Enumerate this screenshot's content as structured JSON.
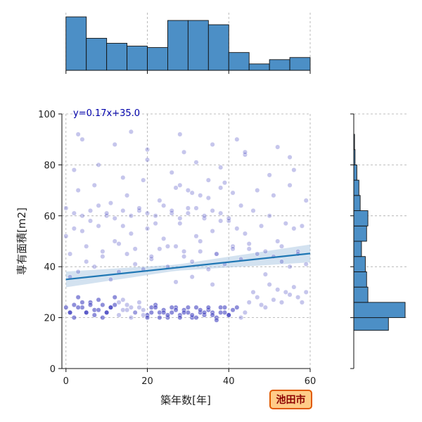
{
  "chart_data": {
    "type": "scatter",
    "xlabel": "築年数[年]",
    "ylabel": "専有面積[m2]",
    "xlim": [
      -1,
      60
    ],
    "ylim": [
      0,
      100
    ],
    "x_ticks": [
      0,
      20,
      40,
      60
    ],
    "y_ticks": [
      0,
      20,
      40,
      60,
      80,
      100
    ],
    "grid": true,
    "regression": {
      "label": "y=0.17x+35.0",
      "slope": 0.17,
      "intercept": 35.0,
      "color": "#1f77b4",
      "ci_color": "#aecbe3"
    },
    "point_color": "#3333bb",
    "badge": {
      "text": "池田市",
      "fill": "#ffcc88",
      "stroke": "#e05a00",
      "text_color": "#8b0000"
    },
    "x_hist": {
      "bin_edges": [
        0,
        5,
        10,
        15,
        20,
        25,
        30,
        35,
        40,
        45,
        50,
        55,
        60
      ],
      "counts": [
        75,
        45,
        38,
        34,
        32,
        70,
        70,
        64,
        25,
        9,
        15,
        18
      ],
      "color": "#4c8fc6"
    },
    "y_hist": {
      "bin_edges": [
        15,
        20,
        26,
        32,
        38,
        44,
        50,
        56,
        62,
        68,
        74,
        80,
        86,
        92
      ],
      "counts": [
        135,
        200,
        55,
        50,
        45,
        30,
        50,
        55,
        25,
        20,
        12,
        5,
        3
      ],
      "color": "#4c8fc6"
    },
    "scatter": {
      "x": [
        1,
        2,
        3,
        4,
        5,
        6,
        7,
        8,
        9,
        10,
        11,
        12,
        13,
        14,
        15,
        16,
        17,
        18,
        19,
        20,
        21,
        22,
        23,
        24,
        25,
        26,
        27,
        28,
        29,
        30,
        31,
        32,
        33,
        34,
        35,
        36,
        37,
        38,
        39,
        40,
        41,
        42,
        43,
        44,
        45,
        46,
        47,
        48,
        49,
        50,
        51,
        52,
        53,
        54,
        55,
        56,
        57,
        58,
        59,
        0,
        1,
        2,
        3,
        4,
        5,
        6,
        7,
        8,
        9,
        10,
        11,
        12,
        13,
        14,
        15,
        16,
        17,
        18,
        19,
        20,
        21,
        22,
        23,
        24,
        25,
        26,
        27,
        28,
        29,
        30,
        31,
        32,
        33,
        34,
        35,
        36,
        37,
        38,
        39,
        40,
        1,
        3,
        5,
        7,
        9,
        11,
        13,
        15,
        17,
        19,
        21,
        23,
        25,
        27,
        29,
        31,
        33,
        35,
        37,
        39,
        41,
        43,
        45,
        47,
        49,
        51,
        53,
        55,
        57,
        59,
        2,
        6,
        10,
        14,
        18,
        22,
        26,
        30,
        34,
        38,
        42,
        46,
        50,
        54,
        58,
        0,
        4,
        8,
        12,
        16,
        20,
        24,
        28,
        32,
        36,
        40,
        44,
        48,
        52,
        56,
        3,
        7,
        11,
        15,
        19,
        23,
        27,
        31,
        35,
        39,
        43,
        47,
        51,
        55,
        59,
        0,
        2,
        4,
        6,
        8,
        10,
        12,
        14,
        16,
        18,
        20,
        22,
        24,
        26,
        28,
        30,
        32,
        34,
        36,
        38,
        40,
        1,
        5,
        9,
        13,
        17,
        21,
        25,
        29,
        33,
        37,
        41,
        45,
        49,
        53,
        57,
        2,
        8,
        14,
        20,
        26,
        32,
        38,
        44,
        50,
        56,
        4,
        12,
        20,
        28,
        36,
        44,
        52,
        3,
        16,
        29,
        42,
        55,
        28,
        30,
        33,
        35,
        38,
        41,
        27,
        31,
        36
      ],
      "y": [
        22,
        25,
        28,
        24,
        22,
        26,
        23,
        27,
        25,
        22,
        24,
        28,
        26,
        23,
        25,
        24,
        22,
        26,
        23,
        21,
        24,
        25,
        22,
        23,
        20,
        22,
        24,
        21,
        23,
        22,
        20,
        24,
        22,
        21,
        23,
        22,
        20,
        24,
        22,
        21,
        23,
        24,
        20,
        22,
        26,
        30,
        28,
        25,
        24,
        33,
        27,
        31,
        26,
        30,
        29,
        32,
        28,
        26,
        30,
        24,
        22,
        20,
        24,
        26,
        22,
        25,
        21,
        23,
        20,
        22,
        24,
        25,
        21,
        27,
        23,
        20,
        22,
        24,
        21,
        20,
        22,
        24,
        20,
        22,
        21,
        24,
        23,
        20,
        22,
        24,
        21,
        20,
        23,
        22,
        24,
        21,
        19,
        22,
        24,
        21,
        36,
        38,
        42,
        40,
        44,
        35,
        38,
        45,
        41,
        39,
        43,
        47,
        40,
        48,
        44,
        42,
        46,
        39,
        45,
        41,
        48,
        43,
        47,
        45,
        37,
        44,
        42,
        40,
        46,
        41,
        55,
        58,
        60,
        56,
        62,
        57,
        61,
        63,
        59,
        58,
        55,
        62,
        60,
        57,
        56,
        52,
        54,
        56,
        50,
        53,
        55,
        51,
        57,
        52,
        54,
        58,
        53,
        56,
        50,
        55,
        70,
        72,
        65,
        68,
        74,
        66,
        71,
        69,
        67,
        73,
        64,
        70,
        68,
        72,
        66,
        63,
        61,
        60,
        62,
        64,
        61,
        59,
        62,
        60,
        63,
        61,
        60,
        64,
        62,
        59,
        61,
        63,
        60,
        62,
        61,
        59,
        45,
        48,
        46,
        49,
        47,
        44,
        48,
        46,
        50,
        45,
        47,
        49,
        46,
        48,
        45,
        78,
        80,
        75,
        82,
        77,
        81,
        79,
        84,
        76,
        78,
        90,
        88,
        86,
        92,
        88,
        85,
        87,
        92,
        93,
        85,
        90,
        83,
        72,
        70,
        68,
        74,
        71,
        69,
        34,
        36,
        33
      ]
    }
  }
}
